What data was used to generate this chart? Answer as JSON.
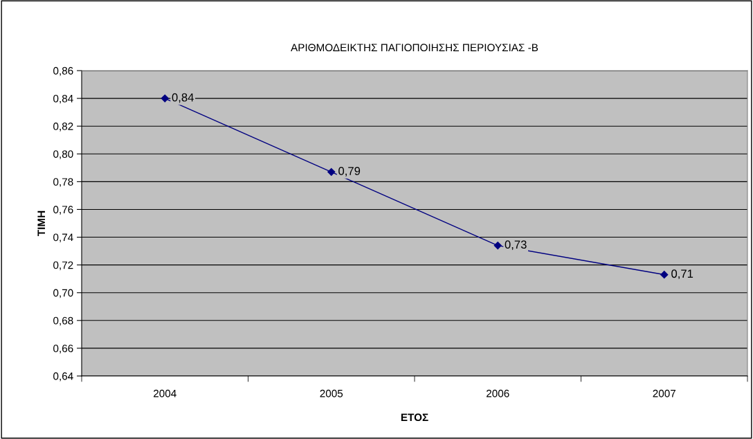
{
  "chart_data": {
    "type": "line",
    "title": "ΑΡΙΘΜΟΔΕΙΚΤΗΣ ΠΑΓΙΟΠΟΙΗΣΗΣ ΠΕΡΙΟΥΣΙΑΣ -Β",
    "xlabel": "ΕΤΟΣ",
    "ylabel": "ΤΙΜΗ",
    "categories": [
      "2004",
      "2005",
      "2006",
      "2007"
    ],
    "series": [
      {
        "color": "#000080",
        "values": [
          0.84,
          0.787,
          0.734,
          0.713
        ],
        "value_labels": [
          "0,84",
          "0,79",
          "0,73",
          "0,71"
        ]
      }
    ],
    "ylim": [
      0.64,
      0.86
    ],
    "yticks": [
      {
        "value": 0.64,
        "label": "0,64"
      },
      {
        "value": 0.66,
        "label": "0,66"
      },
      {
        "value": 0.68,
        "label": "0,68"
      },
      {
        "value": 0.7,
        "label": "0,70"
      },
      {
        "value": 0.72,
        "label": "0,72"
      },
      {
        "value": 0.74,
        "label": "0,74"
      },
      {
        "value": 0.76,
        "label": "0,76"
      },
      {
        "value": 0.78,
        "label": "0,78"
      },
      {
        "value": 0.8,
        "label": "0,80"
      },
      {
        "value": 0.82,
        "label": "0,82"
      },
      {
        "value": 0.84,
        "label": "0,84"
      },
      {
        "value": 0.86,
        "label": "0,86"
      }
    ],
    "grid": "y",
    "marker": "diamond",
    "line_style": "solid",
    "legend": false
  }
}
